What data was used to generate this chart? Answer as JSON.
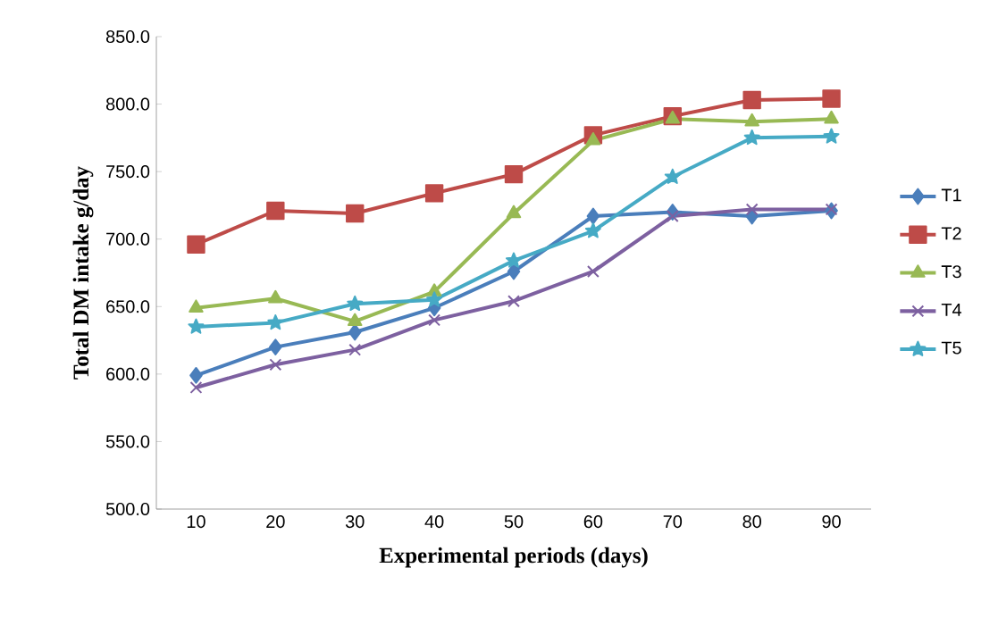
{
  "chart_data": {
    "type": "line",
    "xlabel": "Experimental periods (days)",
    "ylabel": "Total DM intake g/day",
    "categories": [
      "10",
      "20",
      "30",
      "40",
      "50",
      "60",
      "70",
      "80",
      "90"
    ],
    "ylim": [
      500,
      850
    ],
    "yticks": [
      {
        "value": 500,
        "label": "500.0"
      },
      {
        "value": 550,
        "label": "550.0"
      },
      {
        "value": 600,
        "label": "600.0"
      },
      {
        "value": 650,
        "label": "650.0"
      },
      {
        "value": 700,
        "label": "700.0"
      },
      {
        "value": 750,
        "label": "750.0"
      },
      {
        "value": 800,
        "label": "800.0"
      },
      {
        "value": 850,
        "label": "850.0"
      }
    ],
    "grid": false,
    "legend": "right",
    "line_style": "solid",
    "series": [
      {
        "name": "T1",
        "color": "#4a7ebb",
        "marker": "diamond",
        "values": [
          599,
          620,
          631,
          649,
          676,
          717,
          720,
          717,
          721
        ]
      },
      {
        "name": "T2",
        "color": "#be4b48",
        "marker": "square",
        "values": [
          696,
          721,
          719,
          734,
          748,
          777,
          791,
          803,
          804
        ]
      },
      {
        "name": "T3",
        "color": "#98b954",
        "marker": "triangle",
        "values": [
          649,
          656,
          639,
          661,
          719,
          773,
          789,
          787,
          789
        ]
      },
      {
        "name": "T4",
        "color": "#7d60a0",
        "marker": "cross",
        "values": [
          590,
          607,
          618,
          640,
          654,
          676,
          717,
          722,
          722
        ]
      },
      {
        "name": "T5",
        "color": "#46aac5",
        "marker": "star",
        "values": [
          635,
          638,
          652,
          655,
          684,
          706,
          746,
          775,
          776
        ]
      }
    ]
  }
}
